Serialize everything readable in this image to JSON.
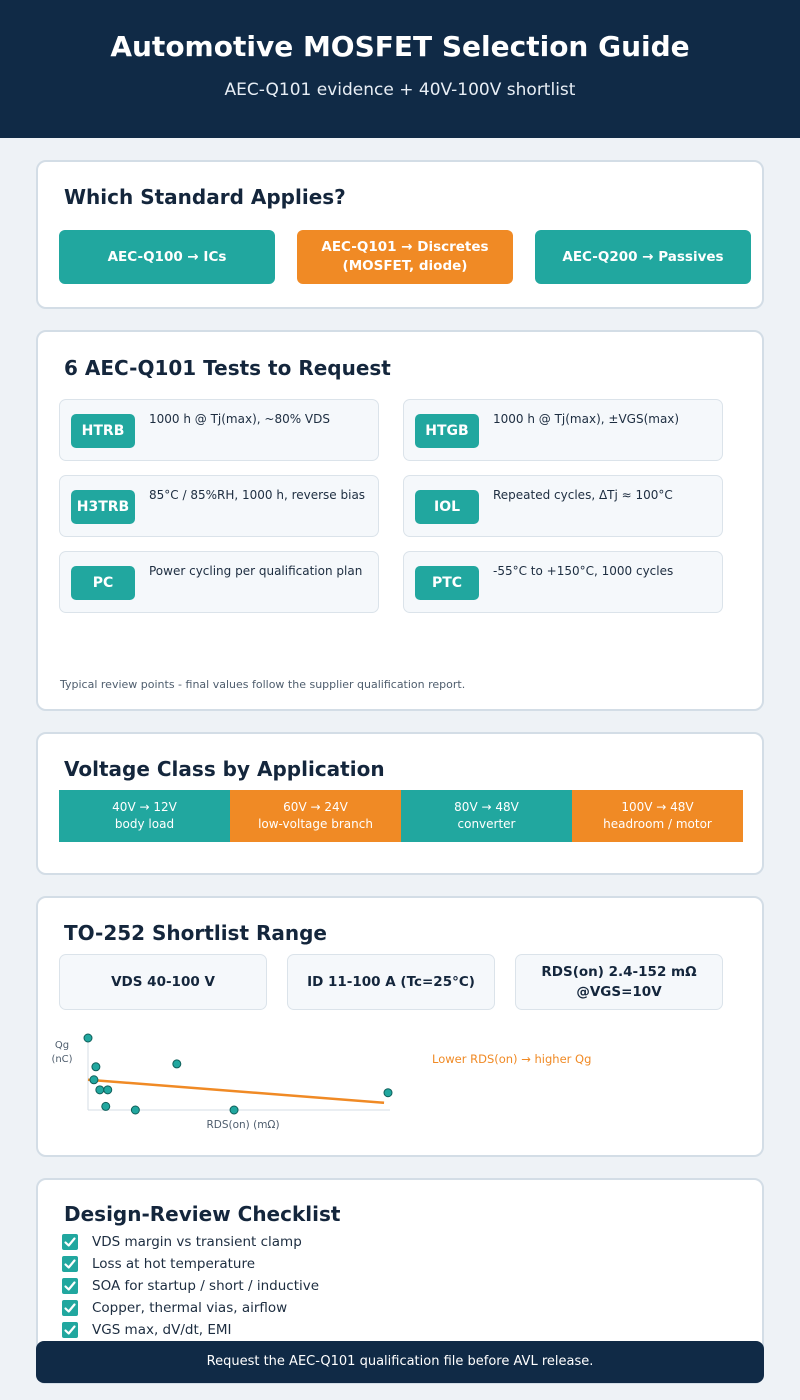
{
  "header": {
    "title": "Automotive MOSFET Selection Guide",
    "subtitle": "AEC-Q101 evidence + 40V-100V shortlist"
  },
  "standards": {
    "heading": "Which Standard Applies?",
    "items": [
      {
        "label": "AEC-Q100 → ICs",
        "color": "#21a79f"
      },
      {
        "label": "AEC-Q101 → Discretes (MOSFET, diode)",
        "color": "#f08a25"
      },
      {
        "label": "AEC-Q200 → Passives",
        "color": "#21a79f"
      }
    ]
  },
  "tests": {
    "heading": "6 AEC-Q101 Tests to Request",
    "items": [
      {
        "code": "HTRB",
        "desc": "1000 h @ Tj(max), ~80% VDS"
      },
      {
        "code": "HTGB",
        "desc": "1000 h @ Tj(max), ±VGS(max)"
      },
      {
        "code": "H3TRB",
        "desc": "85°C / 85%RH, 1000 h, reverse bias"
      },
      {
        "code": "IOL",
        "desc": "Repeated cycles, ΔTj ≈ 100°C"
      },
      {
        "code": "PC",
        "desc": "Power cycling per qualification plan"
      },
      {
        "code": "PTC",
        "desc": "-55°C to +150°C, 1000 cycles"
      }
    ],
    "note": "Typical review points - final values follow the supplier qualification report."
  },
  "voltage": {
    "heading": "Voltage Class by Application",
    "segments": [
      {
        "rating": "40V → 12V",
        "use": "body load",
        "color": "#21a79f"
      },
      {
        "rating": "60V → 24V",
        "use": "low-voltage branch",
        "color": "#f08a25"
      },
      {
        "rating": "80V → 48V",
        "use": "converter",
        "color": "#21a79f"
      },
      {
        "rating": "100V → 48V",
        "use": "headroom / motor",
        "color": "#f08a25"
      }
    ]
  },
  "shortlist": {
    "heading": "TO-252 Shortlist Range",
    "specs": [
      "VDS 40-100 V",
      "ID 11-100 A (Tc=25°C)",
      "RDS(on) 2.4-152 mΩ @VGS=10V"
    ]
  },
  "chart_data": {
    "type": "scatter",
    "xlabel": "RDS(on) (mΩ)",
    "ylabel": "Qg (nC)",
    "annotation": "Lower RDS(on) → higher Qg",
    "xlim": [
      0,
      152
    ],
    "ylim": [
      0,
      100
    ],
    "points": [
      {
        "x": 0,
        "y": 100
      },
      {
        "x": 4,
        "y": 60
      },
      {
        "x": 3,
        "y": 42
      },
      {
        "x": 6,
        "y": 28
      },
      {
        "x": 10,
        "y": 28
      },
      {
        "x": 9,
        "y": 5
      },
      {
        "x": 24,
        "y": 0
      },
      {
        "x": 45,
        "y": 64
      },
      {
        "x": 74,
        "y": 0
      },
      {
        "x": 152,
        "y": 24
      }
    ],
    "trend": [
      {
        "x": 0,
        "y": 42
      },
      {
        "x": 150,
        "y": 10
      }
    ],
    "point_color": "#21a79f",
    "trend_color": "#f08a25"
  },
  "checklist": {
    "heading": "Design-Review Checklist",
    "items": [
      "VDS margin vs transient clamp",
      "Loss at hot temperature",
      "SOA for startup / short / inductive",
      "Copper, thermal vias, airflow",
      "VGS max, dV/dt, EMI"
    ]
  },
  "footer": {
    "text": "Request the AEC-Q101 qualification file before AVL release."
  }
}
